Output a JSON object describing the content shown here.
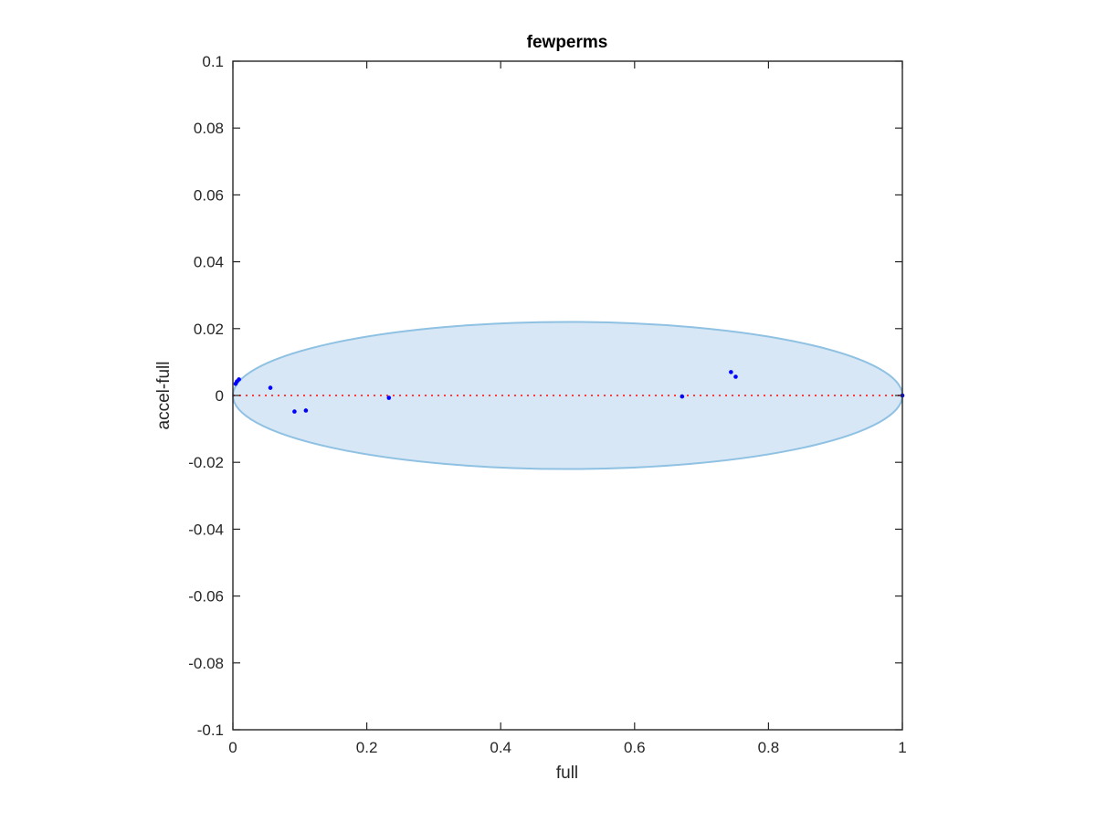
{
  "chart_data": {
    "type": "scatter",
    "title": "fewperms",
    "xlabel": "full",
    "ylabel": "accel-full",
    "xlim": [
      0,
      1
    ],
    "ylim": [
      -0.1,
      0.1
    ],
    "xticks": [
      0,
      0.2,
      0.4,
      0.6,
      0.8,
      1
    ],
    "xtick_labels": [
      "0",
      "0.2",
      "0.4",
      "0.6",
      "0.8",
      "1"
    ],
    "yticks": [
      -0.1,
      -0.08,
      -0.06,
      -0.04,
      -0.02,
      0,
      0.02,
      0.04,
      0.06,
      0.08,
      0.1
    ],
    "ytick_labels": [
      "-0.1",
      "-0.08",
      "-0.06",
      "-0.04",
      "-0.02",
      "0",
      "0.02",
      "0.04",
      "0.06",
      "0.08",
      "0.1"
    ],
    "grid": false,
    "points": {
      "x": [
        0.004,
        0.006,
        0.009,
        0.056,
        0.092,
        0.109,
        0.233,
        0.671,
        0.744,
        0.751,
        1.0
      ],
      "y": [
        0.0035,
        0.0042,
        0.0048,
        0.0023,
        -0.0048,
        -0.0045,
        -0.0007,
        -0.0003,
        0.007,
        0.0056,
        0.0
      ]
    },
    "ellipse": {
      "center_x": 0.5,
      "center_y": 0.0,
      "radius_x": 0.5,
      "radius_y": 0.022
    },
    "reference_line": {
      "y": 0,
      "style": "dotted"
    },
    "colors": {
      "points": "#0000ff",
      "ellipse_fill": "#d7e7f5",
      "ellipse_edge": "#8fc1e3",
      "reference_line": "#ff3b3b",
      "axes": "#262626"
    }
  }
}
